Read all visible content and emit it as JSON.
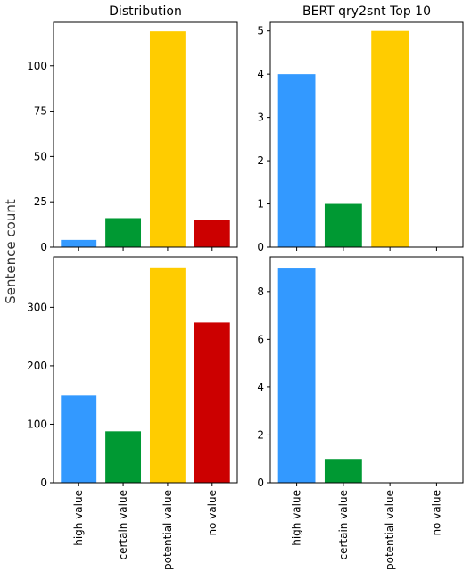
{
  "figure": {
    "ylabel": "Sentence count"
  },
  "chart_data": [
    {
      "type": "bar",
      "title": "Distribution",
      "categories": [
        "high value",
        "certain value",
        "potential value",
        "no value"
      ],
      "values": [
        4,
        16,
        119,
        15
      ],
      "colors": [
        "#3399ff",
        "#009933",
        "#ffcc00",
        "#cc0000"
      ],
      "ylim": [
        0,
        124
      ],
      "yticks": [
        0,
        25,
        50,
        75,
        100
      ],
      "xlabel": "",
      "ylabel": "",
      "show_xtick_labels": false
    },
    {
      "type": "bar",
      "title": "BERT qry2snt Top 10",
      "categories": [
        "high value",
        "certain value",
        "potential value",
        "no value"
      ],
      "values": [
        4,
        1,
        5,
        0
      ],
      "colors": [
        "#3399ff",
        "#009933",
        "#ffcc00",
        "#cc0000"
      ],
      "ylim": [
        0,
        5.2
      ],
      "yticks": [
        0,
        1,
        2,
        3,
        4,
        5
      ],
      "xlabel": "",
      "ylabel": "",
      "show_xtick_labels": false
    },
    {
      "type": "bar",
      "title": "",
      "categories": [
        "high value",
        "certain value",
        "potential value",
        "no value"
      ],
      "values": [
        149,
        88,
        368,
        274
      ],
      "colors": [
        "#3399ff",
        "#009933",
        "#ffcc00",
        "#cc0000"
      ],
      "ylim": [
        0,
        386
      ],
      "yticks": [
        0,
        100,
        200,
        300
      ],
      "xlabel": "",
      "ylabel": "",
      "show_xtick_labels": true
    },
    {
      "type": "bar",
      "title": "",
      "categories": [
        "high value",
        "certain value",
        "potential value",
        "no value"
      ],
      "values": [
        9,
        1,
        0,
        0
      ],
      "colors": [
        "#3399ff",
        "#009933",
        "#ffcc00",
        "#cc0000"
      ],
      "ylim": [
        0,
        9.45
      ],
      "yticks": [
        0,
        2,
        4,
        6,
        8
      ],
      "xlabel": "",
      "ylabel": "",
      "show_xtick_labels": true
    }
  ]
}
